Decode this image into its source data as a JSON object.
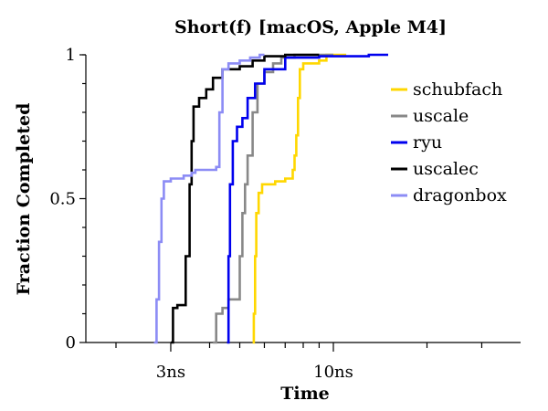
{
  "chart_data": {
    "type": "line",
    "title": "Short(f) [macOS, Apple M4]",
    "xlabel": "Time",
    "ylabel": "Fraction Completed",
    "x_scale": "log",
    "xlim": [
      1.6,
      40
    ],
    "ylim": [
      0,
      1
    ],
    "x_ticks": [
      {
        "value": 3,
        "label": "3ns"
      },
      {
        "value": 10,
        "label": "10ns"
      }
    ],
    "x_minor_ticks": [
      2,
      4,
      5,
      6,
      7,
      8,
      9,
      20,
      30
    ],
    "y_ticks": [
      {
        "value": 0,
        "label": "0"
      },
      {
        "value": 0.5,
        "label": "0.5"
      },
      {
        "value": 1,
        "label": "1"
      }
    ],
    "grid": false,
    "legend_position": "right",
    "series": [
      {
        "name": "schubfach",
        "color": "#ffd700",
        "points": [
          [
            5.5,
            0
          ],
          [
            5.55,
            0.1
          ],
          [
            5.6,
            0.3
          ],
          [
            5.65,
            0.45
          ],
          [
            5.75,
            0.52
          ],
          [
            5.9,
            0.55
          ],
          [
            6.5,
            0.56
          ],
          [
            7.0,
            0.57
          ],
          [
            7.4,
            0.6
          ],
          [
            7.5,
            0.65
          ],
          [
            7.6,
            0.72
          ],
          [
            7.7,
            0.85
          ],
          [
            7.8,
            0.95
          ],
          [
            8.0,
            0.97
          ],
          [
            9.0,
            0.98
          ],
          [
            9.5,
            1.0
          ],
          [
            11.0,
            1.0
          ]
        ]
      },
      {
        "name": "uscale",
        "color": "#888888",
        "points": [
          [
            4.1,
            0
          ],
          [
            4.2,
            0.1
          ],
          [
            4.4,
            0.12
          ],
          [
            4.6,
            0.15
          ],
          [
            4.9,
            0.15
          ],
          [
            5.0,
            0.3
          ],
          [
            5.1,
            0.45
          ],
          [
            5.2,
            0.55
          ],
          [
            5.3,
            0.65
          ],
          [
            5.5,
            0.8
          ],
          [
            5.7,
            0.9
          ],
          [
            6.0,
            0.94
          ],
          [
            6.4,
            0.97
          ],
          [
            6.8,
            0.99
          ],
          [
            7.5,
            1.0
          ],
          [
            10.0,
            1.0
          ]
        ]
      },
      {
        "name": "ryu",
        "color": "#0000ee",
        "points": [
          [
            4.55,
            0
          ],
          [
            4.6,
            0.3
          ],
          [
            4.65,
            0.55
          ],
          [
            4.75,
            0.7
          ],
          [
            4.9,
            0.75
          ],
          [
            5.1,
            0.78
          ],
          [
            5.3,
            0.85
          ],
          [
            5.6,
            0.9
          ],
          [
            6.0,
            0.95
          ],
          [
            7.0,
            0.99
          ],
          [
            9.0,
            0.995
          ],
          [
            13.0,
            1.0
          ],
          [
            15.0,
            1.0
          ]
        ]
      },
      {
        "name": "uscalec",
        "color": "#000000",
        "points": [
          [
            3.0,
            0
          ],
          [
            3.05,
            0.12
          ],
          [
            3.15,
            0.13
          ],
          [
            3.25,
            0.13
          ],
          [
            3.35,
            0.3
          ],
          [
            3.45,
            0.55
          ],
          [
            3.5,
            0.7
          ],
          [
            3.55,
            0.82
          ],
          [
            3.7,
            0.85
          ],
          [
            3.9,
            0.88
          ],
          [
            4.1,
            0.92
          ],
          [
            4.4,
            0.95
          ],
          [
            5.0,
            0.96
          ],
          [
            5.5,
            0.98
          ],
          [
            6.0,
            0.995
          ],
          [
            7.0,
            1.0
          ],
          [
            9.0,
            1.0
          ]
        ]
      },
      {
        "name": "dragonbox",
        "color": "#8c8cf5",
        "points": [
          [
            2.65,
            0
          ],
          [
            2.7,
            0.15
          ],
          [
            2.75,
            0.35
          ],
          [
            2.8,
            0.5
          ],
          [
            2.85,
            0.56
          ],
          [
            3.0,
            0.57
          ],
          [
            3.3,
            0.58
          ],
          [
            3.5,
            0.59
          ],
          [
            3.6,
            0.6
          ],
          [
            3.9,
            0.6
          ],
          [
            4.2,
            0.61
          ],
          [
            4.3,
            0.8
          ],
          [
            4.4,
            0.95
          ],
          [
            4.6,
            0.97
          ],
          [
            5.0,
            0.98
          ],
          [
            5.4,
            0.99
          ],
          [
            5.8,
            1.0
          ],
          [
            6.0,
            1.0
          ]
        ]
      }
    ]
  }
}
